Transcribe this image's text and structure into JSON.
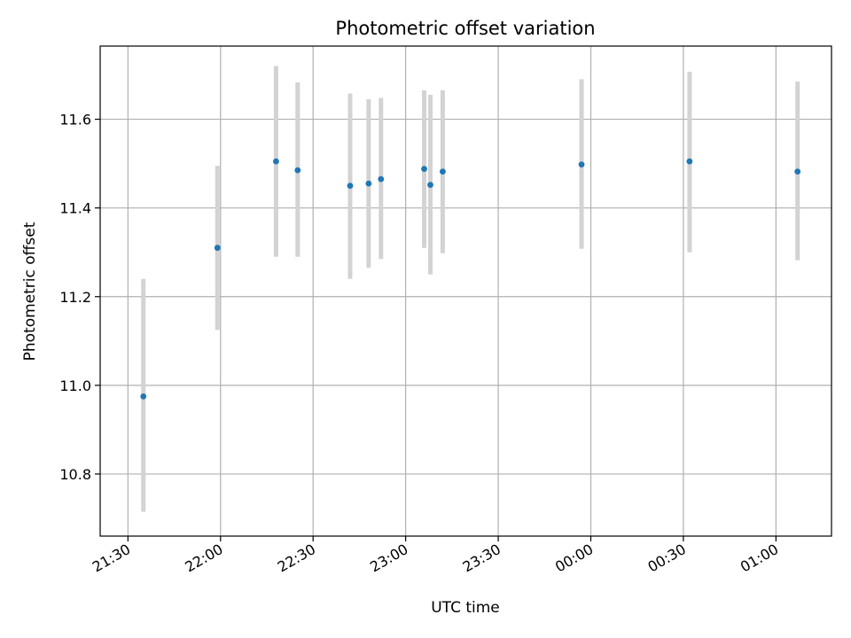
{
  "chart_data": {
    "type": "scatter",
    "title": "Photometric offset variation",
    "xlabel": "UTC time",
    "ylabel": "Photometric offset",
    "xlim": [
      "21:21",
      "01:18"
    ],
    "ylim": [
      10.66,
      11.765
    ],
    "x_ticks": [
      "21:30",
      "22:00",
      "22:30",
      "23:00",
      "23:30",
      "00:00",
      "00:30",
      "01:00"
    ],
    "y_ticks": [
      10.8,
      11.0,
      11.2,
      11.4,
      11.6
    ],
    "grid": true,
    "errorbar_color": "#d3d3d3",
    "point_color": "#1f77b4",
    "points": [
      {
        "time": "21:35",
        "y": 10.975,
        "lo": 10.715,
        "hi": 11.24
      },
      {
        "time": "21:59",
        "y": 11.31,
        "lo": 11.125,
        "hi": 11.495
      },
      {
        "time": "22:18",
        "y": 11.505,
        "lo": 11.29,
        "hi": 11.72
      },
      {
        "time": "22:25",
        "y": 11.485,
        "lo": 11.29,
        "hi": 11.683
      },
      {
        "time": "22:42",
        "y": 11.45,
        "lo": 11.24,
        "hi": 11.658
      },
      {
        "time": "22:48",
        "y": 11.455,
        "lo": 11.265,
        "hi": 11.645
      },
      {
        "time": "22:52",
        "y": 11.465,
        "lo": 11.285,
        "hi": 11.648
      },
      {
        "time": "23:06",
        "y": 11.488,
        "lo": 11.31,
        "hi": 11.665
      },
      {
        "time": "23:08",
        "y": 11.452,
        "lo": 11.25,
        "hi": 11.655
      },
      {
        "time": "23:12",
        "y": 11.482,
        "lo": 11.298,
        "hi": 11.665
      },
      {
        "time": "23:57",
        "y": 11.498,
        "lo": 11.308,
        "hi": 11.69
      },
      {
        "time": "00:32",
        "y": 11.505,
        "lo": 11.3,
        "hi": 11.707
      },
      {
        "time": "01:07",
        "y": 11.482,
        "lo": 11.282,
        "hi": 11.685
      }
    ]
  }
}
